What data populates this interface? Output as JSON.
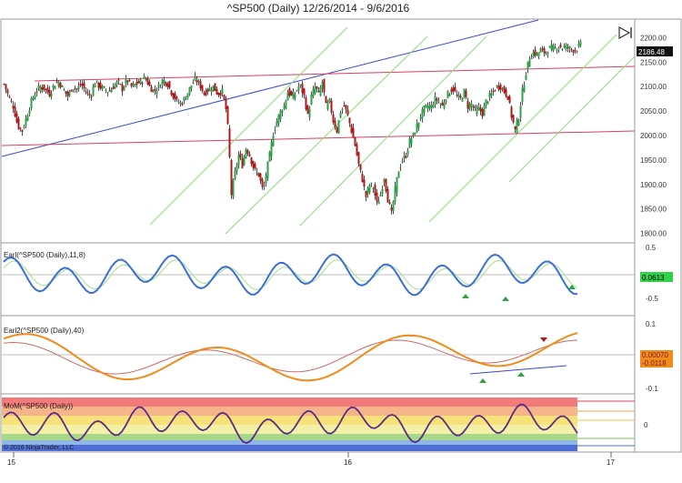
{
  "window": {
    "title": "^SP500 (Daily)  12/26/2014 - 9/6/2016"
  },
  "chart_data": [
    {
      "type": "candlestick",
      "panel": "price",
      "title": "^SP500 (Daily)  12/26/2014 - 9/6/2016",
      "ylim": [
        1790,
        2225
      ],
      "yticks": [
        "2200.00",
        "2150.00",
        "2100.00",
        "2050.00",
        "2000.00",
        "1950.00",
        "1900.00",
        "1850.00",
        "1800.00"
      ],
      "last_price": "2186.48",
      "close_path": [
        [
          0,
          2105
        ],
        [
          5,
          2080
        ],
        [
          10,
          2060
        ],
        [
          15,
          2020
        ],
        [
          20,
          2010
        ],
        [
          25,
          2040
        ],
        [
          30,
          2070
        ],
        [
          35,
          2090
        ],
        [
          40,
          2100
        ],
        [
          45,
          2095
        ],
        [
          50,
          2085
        ],
        [
          55,
          2105
        ],
        [
          60,
          2110
        ],
        [
          65,
          2095
        ],
        [
          70,
          2080
        ],
        [
          75,
          2100
        ],
        [
          80,
          2095
        ],
        [
          85,
          2105
        ],
        [
          90,
          2090
        ],
        [
          95,
          2080
        ],
        [
          100,
          2110
        ],
        [
          105,
          2100
        ],
        [
          110,
          2095
        ],
        [
          115,
          2090
        ],
        [
          120,
          2100
        ],
        [
          125,
          2110
        ],
        [
          130,
          2095
        ],
        [
          135,
          2115
        ],
        [
          140,
          2100
        ],
        [
          145,
          2105
        ],
        [
          150,
          2110
        ],
        [
          155,
          2120
        ],
        [
          160,
          2100
        ],
        [
          165,
          2090
        ],
        [
          170,
          2100
        ],
        [
          175,
          2115
        ],
        [
          180,
          2105
        ],
        [
          185,
          2085
        ],
        [
          190,
          2070
        ],
        [
          195,
          2065
        ],
        [
          200,
          2080
        ],
        [
          205,
          2100
        ],
        [
          210,
          2115
        ],
        [
          215,
          2105
        ],
        [
          220,
          2085
        ],
        [
          225,
          2095
        ],
        [
          230,
          2100
        ],
        [
          235,
          2085
        ],
        [
          240,
          2090
        ],
        [
          245,
          2045
        ],
        [
          247,
          1990
        ],
        [
          250,
          1880
        ],
        [
          253,
          1915
        ],
        [
          258,
          1960
        ],
        [
          262,
          1940
        ],
        [
          266,
          1975
        ],
        [
          270,
          1960
        ],
        [
          275,
          1930
        ],
        [
          280,
          1920
        ],
        [
          285,
          1885
        ],
        [
          288,
          1920
        ],
        [
          292,
          1960
        ],
        [
          296,
          2005
        ],
        [
          300,
          2030
        ],
        [
          304,
          2050
        ],
        [
          308,
          2060
        ],
        [
          312,
          2090
        ],
        [
          316,
          2080
        ],
        [
          320,
          2085
        ],
        [
          325,
          2105
        ],
        [
          330,
          2080
        ],
        [
          334,
          2040
        ],
        [
          338,
          2080
        ],
        [
          342,
          2100
        ],
        [
          346,
          2085
        ],
        [
          350,
          2110
        ],
        [
          354,
          2060
        ],
        [
          358,
          2070
        ],
        [
          362,
          2030
        ],
        [
          366,
          2010
        ],
        [
          370,
          2050
        ],
        [
          374,
          2060
        ],
        [
          378,
          2040
        ],
        [
          382,
          2010
        ],
        [
          386,
          1980
        ],
        [
          390,
          1940
        ],
        [
          394,
          1910
        ],
        [
          398,
          1875
        ],
        [
          402,
          1900
        ],
        [
          406,
          1895
        ],
        [
          410,
          1860
        ],
        [
          414,
          1880
        ],
        [
          418,
          1915
        ],
        [
          422,
          1870
        ],
        [
          426,
          1840
        ],
        [
          430,
          1890
        ],
        [
          434,
          1930
        ],
        [
          438,
          1950
        ],
        [
          442,
          1960
        ],
        [
          446,
          1990
        ],
        [
          450,
          2000
        ],
        [
          454,
          2020
        ],
        [
          458,
          2040
        ],
        [
          462,
          2055
        ],
        [
          466,
          2060
        ],
        [
          470,
          2060
        ],
        [
          474,
          2075
        ],
        [
          478,
          2070
        ],
        [
          482,
          2060
        ],
        [
          486,
          2080
        ],
        [
          490,
          2090
        ],
        [
          494,
          2095
        ],
        [
          498,
          2080
        ],
        [
          502,
          2075
        ],
        [
          506,
          2090
        ],
        [
          510,
          2060
        ],
        [
          514,
          2065
        ],
        [
          518,
          2050
        ],
        [
          522,
          2055
        ],
        [
          526,
          2045
        ],
        [
          530,
          2070
        ],
        [
          534,
          2080
        ],
        [
          538,
          2090
        ],
        [
          542,
          2100
        ],
        [
          546,
          2100
        ],
        [
          550,
          2090
        ],
        [
          554,
          2080
        ],
        [
          558,
          2040
        ],
        [
          562,
          2010
        ],
        [
          566,
          2040
        ],
        [
          570,
          2090
        ],
        [
          574,
          2130
        ],
        [
          578,
          2160
        ],
        [
          582,
          2170
        ],
        [
          586,
          2165
        ],
        [
          590,
          2175
        ],
        [
          594,
          2170
        ],
        [
          598,
          2175
        ],
        [
          602,
          2180
        ],
        [
          606,
          2178
        ],
        [
          610,
          2183
        ],
        [
          614,
          2180
        ],
        [
          618,
          2182
        ],
        [
          622,
          2178
        ],
        [
          626,
          2175
        ],
        [
          630,
          2178
        ],
        [
          634,
          2186
        ]
      ]
    },
    {
      "type": "line",
      "panel": "oscillator",
      "label": "Earl(^SP500 (Daily),11,8)",
      "ylim": [
        -0.75,
        0.55
      ],
      "yticks": [
        "0.5",
        "-0.5"
      ],
      "last_value": "0.0613",
      "series": [
        {
          "name": "fast",
          "color": "#3a6fd8"
        },
        {
          "name": "signal",
          "color": "#a4e08a"
        }
      ]
    },
    {
      "type": "line",
      "panel": "oscillator",
      "label": "Earl2(^SP500 (Daily),40)",
      "ylim": [
        -0.13,
        0.12
      ],
      "yticks": [
        "0.1",
        "-0.1"
      ],
      "last_values": [
        "0.00070",
        "-0.0118"
      ],
      "series": [
        {
          "name": "fast",
          "color": "#f28a1c"
        },
        {
          "name": "signal",
          "color": "#c76a6a"
        }
      ]
    },
    {
      "type": "line",
      "panel": "oscillator",
      "label": "MoM(^SP500 (Daily))",
      "yticks": [
        "0"
      ],
      "series": [
        {
          "name": "momentum",
          "color": "#5a2d82"
        }
      ]
    }
  ],
  "xaxis": {
    "ticks": [
      "15",
      "16",
      "17"
    ]
  },
  "copyright": "© 2016 NinjaTrader, LLC"
}
